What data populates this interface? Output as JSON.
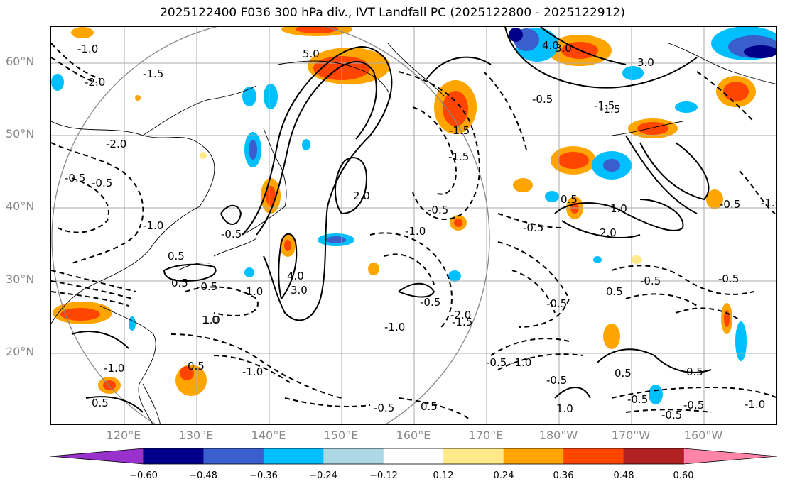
{
  "title": "2025122400 F036 300 hPa div., IVT Landfall PC (2025122800 - 2025122912)",
  "map": {
    "lat_labels": [
      "60°N",
      "50°N",
      "40°N",
      "30°N",
      "20°N"
    ],
    "lon_labels": [
      "120°E",
      "130°E",
      "140°E",
      "150°E",
      "160°E",
      "170°E",
      "180°W",
      "170°W",
      "160°W"
    ],
    "contour_labels": [
      "-1.0",
      "-2.0",
      "-1.5",
      "5.0",
      "4.0",
      "3.0",
      "-1.5",
      "-0.5",
      "-2.0",
      "-0.5",
      "-0.5",
      "-1.0",
      "-0.5",
      "2.0",
      "-0.5",
      "-0.5",
      "0.5",
      "-1.0",
      "-1.5",
      "-1.0",
      "-0.5",
      "1.0",
      "-0.5",
      "0.5",
      "4.0",
      "3.0",
      "-0.5",
      "-0.5",
      "-1.0",
      "-2.0",
      "-1.5",
      "2.0",
      "1.0",
      "0.5",
      "-0.5",
      "-1.0",
      "0.5",
      "0.5",
      "-0.5",
      "-1.0",
      "-0.5",
      "1.0",
      "0.5",
      "-0.5",
      "-1.0",
      "0.5",
      "-0.5",
      "0.5",
      "-1.5",
      "-1.5",
      "-0.5",
      "0.5",
      "3.0",
      "-0.5",
      "-0.5",
      "1.0",
      "-1.0",
      "-1.0"
    ],
    "colors": {
      "land_outline": "#000000",
      "grid": "#aaaaaa",
      "contour": "#000000",
      "circle": "#888888"
    }
  },
  "colorbar": {
    "colors": [
      "#9932cc",
      "#00008b",
      "#3a5fcd",
      "#00bfff",
      "#add8e6",
      "#ffffff",
      "#ffe98a",
      "#ffa500",
      "#ff4500",
      "#b22222",
      "#ff85a8"
    ],
    "tick_labels": [
      "−0.60",
      "−0.48",
      "−0.36",
      "−0.24",
      "−0.12",
      "0.12",
      "0.24",
      "0.36",
      "0.48",
      "0.60"
    ]
  }
}
